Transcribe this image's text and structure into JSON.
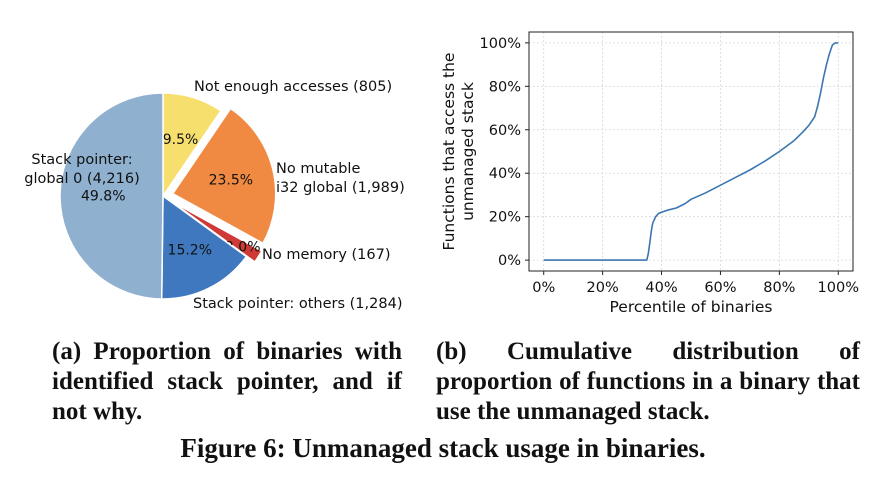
{
  "chart_data": [
    {
      "type": "pie",
      "slices": [
        {
          "label": "Not enough accesses (805)",
          "pct_label": "9.5%",
          "value": 9.5,
          "color": "#f7df6e",
          "exploded": false
        },
        {
          "label": "No mutable\ni32 global (1,989)",
          "pct_label": "23.5%",
          "value": 23.5,
          "color": "#f08a42",
          "exploded": true
        },
        {
          "label": "No memory (167)",
          "pct_label": "2.0%",
          "value": 2.0,
          "color": "#cf3a36",
          "exploded": true
        },
        {
          "label": "Stack pointer: others (1,284)",
          "pct_label": "15.2%",
          "value": 15.2,
          "color": "#3f78bf",
          "exploded": false
        },
        {
          "label": "Stack pointer:\nglobal 0 (4,216)",
          "pct_label": "49.8%",
          "value": 49.8,
          "color": "#8fb0cf",
          "exploded": false
        }
      ],
      "start_angle_deg": 90,
      "direction": "clockwise"
    },
    {
      "type": "line",
      "xlabel": "Percentile of binaries",
      "ylabel": "Functions that access the\nunmanaged stack",
      "xlim": [
        -0.05,
        1.05
      ],
      "ylim": [
        -0.05,
        1.05
      ],
      "xticks": [
        0,
        0.2,
        0.4,
        0.6,
        0.8,
        1.0
      ],
      "xtick_labels": [
        "0%",
        "20%",
        "40%",
        "60%",
        "80%",
        "100%"
      ],
      "yticks": [
        0,
        0.2,
        0.4,
        0.6,
        0.8,
        1.0
      ],
      "ytick_labels": [
        "0%",
        "20%",
        "40%",
        "60%",
        "80%",
        "100%"
      ],
      "grid": true,
      "series": [
        {
          "color": "#3c76b0",
          "x": [
            0,
            0.1,
            0.2,
            0.3,
            0.35,
            0.355,
            0.36,
            0.365,
            0.37,
            0.38,
            0.39,
            0.4,
            0.42,
            0.45,
            0.48,
            0.5,
            0.55,
            0.6,
            0.65,
            0.7,
            0.75,
            0.8,
            0.85,
            0.88,
            0.9,
            0.91,
            0.92,
            0.93,
            0.94,
            0.95,
            0.96,
            0.97,
            0.98,
            0.99,
            1.0
          ],
          "y": [
            0,
            0,
            0,
            0,
            0,
            0.03,
            0.08,
            0.13,
            0.17,
            0.2,
            0.215,
            0.22,
            0.23,
            0.24,
            0.26,
            0.28,
            0.31,
            0.345,
            0.38,
            0.415,
            0.455,
            0.5,
            0.55,
            0.59,
            0.62,
            0.64,
            0.66,
            0.71,
            0.77,
            0.84,
            0.9,
            0.95,
            0.99,
            1.0,
            1.0
          ]
        }
      ]
    }
  ],
  "captions": {
    "a": "(a) Proportion of binaries with identified stack pointer, and if not why.",
    "b": "(b) Cumulative distribution of proportion of functions in a binary that use the unmanaged stack."
  },
  "figure_title": "Figure 6: Unmanaged stack usage in binaries."
}
